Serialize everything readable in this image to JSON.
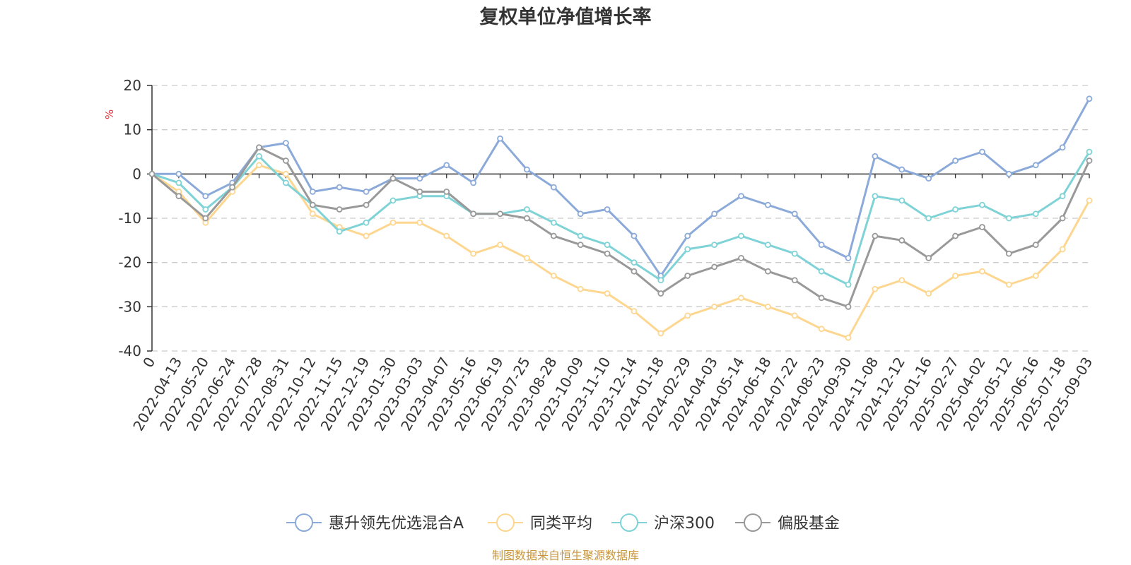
{
  "chart_data": {
    "type": "line",
    "title": "复权单位净值增长率",
    "ylabel": "%",
    "ylim": [
      -40,
      20
    ],
    "yticks": [
      20,
      10,
      0,
      -10,
      -20,
      -30,
      -40
    ],
    "grid": true,
    "legend_position": "bottom",
    "source": "制图数据来自恒生聚源数据库",
    "categories": [
      "0",
      "2022-04-13",
      "2022-05-20",
      "2022-06-24",
      "2022-07-28",
      "2022-08-31",
      "2022-10-12",
      "2022-11-15",
      "2022-12-19",
      "2023-01-30",
      "2023-03-03",
      "2023-04-07",
      "2023-05-16",
      "2023-06-19",
      "2023-07-25",
      "2023-08-28",
      "2023-10-09",
      "2023-11-10",
      "2023-12-14",
      "2024-01-18",
      "2024-02-29",
      "2024-04-03",
      "2024-05-14",
      "2024-06-18",
      "2024-07-22",
      "2024-08-23",
      "2024-09-30",
      "2024-11-08",
      "2024-12-12",
      "2025-01-16",
      "2025-02-27",
      "2025-04-02",
      "2025-05-12",
      "2025-06-16",
      "2025-07-18",
      "2025-09-03"
    ],
    "series": [
      {
        "name": "惠升领先优选混合A",
        "color": "#8baad9",
        "values": [
          0,
          0,
          -5,
          -2,
          6,
          7,
          -4,
          -3,
          -4,
          -1,
          -1,
          2,
          -2,
          8,
          1,
          -3,
          -9,
          -8,
          -14,
          -23,
          -14,
          -9,
          -5,
          -7,
          -9,
          -16,
          -19,
          4,
          1,
          -1,
          3,
          5,
          0,
          2,
          6,
          17
        ]
      },
      {
        "name": "同类平均",
        "color": "#fdd690",
        "values": [
          0,
          -4,
          -11,
          -4,
          2,
          0,
          -9,
          -12,
          -14,
          -11,
          -11,
          -14,
          -18,
          -16,
          -19,
          -23,
          -26,
          -27,
          -31,
          -36,
          -32,
          -30,
          -28,
          -30,
          -32,
          -35,
          -37,
          -26,
          -24,
          -27,
          -23,
          -22,
          -25,
          -23,
          -17,
          -6
        ]
      },
      {
        "name": "沪深300",
        "color": "#7fd3d6",
        "values": [
          0,
          -2,
          -8,
          -3,
          4,
          -2,
          -7,
          -13,
          -11,
          -6,
          -5,
          -5,
          -9,
          -9,
          -8,
          -11,
          -14,
          -16,
          -20,
          -24,
          -17,
          -16,
          -14,
          -16,
          -18,
          -22,
          -25,
          -5,
          -6,
          -10,
          -8,
          -7,
          -10,
          -9,
          -5,
          5
        ]
      },
      {
        "name": "偏股基金",
        "color": "#999999",
        "values": [
          0,
          -5,
          -10,
          -3,
          6,
          3,
          -7,
          -8,
          -7,
          -1,
          -4,
          -4,
          -9,
          -9,
          -10,
          -14,
          -16,
          -18,
          -22,
          -27,
          -23,
          -21,
          -19,
          -22,
          -24,
          -28,
          -30,
          -14,
          -15,
          -19,
          -14,
          -12,
          -18,
          -16,
          -10,
          3
        ]
      }
    ]
  }
}
